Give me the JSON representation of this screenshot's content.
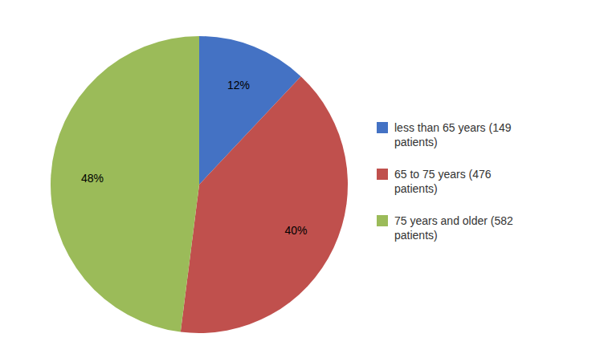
{
  "chart_data": {
    "type": "pie",
    "categories": [
      "less than 65 years (149\npatients)",
      "65 to 75 years (476\npatients)",
      "75 years and older (582\npatients)"
    ],
    "values": [
      12,
      40,
      48
    ],
    "value_labels": [
      "12%",
      "40%",
      "48%"
    ],
    "colors": [
      "#4472C4",
      "#C0504D",
      "#9BBB59"
    ],
    "data_labels": true,
    "legend": "right"
  }
}
